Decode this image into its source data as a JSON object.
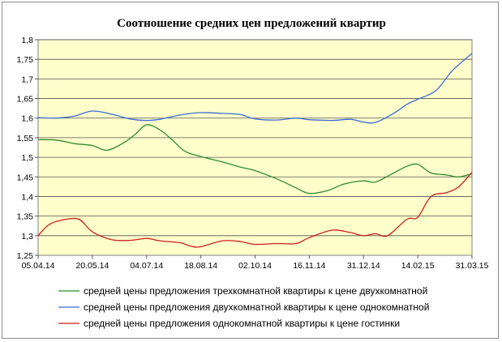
{
  "chart_data": {
    "type": "line",
    "title": "Соотношение средних цен предложений квартир",
    "xlabel": "",
    "ylabel": "",
    "ylim": [
      1.25,
      1.8
    ],
    "yticks": [
      "1,25",
      "1,3",
      "1,35",
      "1,4",
      "1,45",
      "1,5",
      "1,55",
      "1,6",
      "1,65",
      "1,7",
      "1,75",
      "1,8"
    ],
    "x_start": "05.04.14",
    "x_end": "31.03.15",
    "xticks": [
      "05.04.14",
      "20.05.14",
      "04.07.14",
      "18.08.14",
      "02.10.14",
      "16.11.14",
      "31.12.14",
      "14.02.15",
      "31.03.15"
    ],
    "grid": "horizontal",
    "legend_position": "bottom",
    "plot_background": "#ffffcc",
    "series": [
      {
        "name": "средней  цены предложения трехкомнатной квартиры к цене двухкомнатной",
        "color": "#2e8b2e",
        "points": [
          [
            "05.04.14",
            1.545
          ],
          [
            "20.04.14",
            1.544
          ],
          [
            "05.05.14",
            1.535
          ],
          [
            "20.05.14",
            1.53
          ],
          [
            "01.06.14",
            1.518
          ],
          [
            "15.06.14",
            1.537
          ],
          [
            "25.06.14",
            1.56
          ],
          [
            "04.07.14",
            1.583
          ],
          [
            "15.07.14",
            1.57
          ],
          [
            "25.07.14",
            1.545
          ],
          [
            "05.08.14",
            1.515
          ],
          [
            "18.08.14",
            1.502
          ],
          [
            "05.09.14",
            1.488
          ],
          [
            "20.09.14",
            1.475
          ],
          [
            "02.10.14",
            1.466
          ],
          [
            "20.10.14",
            1.445
          ],
          [
            "05.11.14",
            1.422
          ],
          [
            "16.11.14",
            1.408
          ],
          [
            "01.12.14",
            1.415
          ],
          [
            "15.12.14",
            1.432
          ],
          [
            "31.12.14",
            1.44
          ],
          [
            "10.01.15",
            1.437
          ],
          [
            "25.01.15",
            1.46
          ],
          [
            "05.02.15",
            1.477
          ],
          [
            "14.02.15",
            1.482
          ],
          [
            "25.02.15",
            1.46
          ],
          [
            "10.03.15",
            1.455
          ],
          [
            "20.03.15",
            1.45
          ],
          [
            "31.03.15",
            1.458
          ]
        ]
      },
      {
        "name": "средней цены предложения двухкомнатной квартиры к цене однокомнатной",
        "color": "#3a6bd4",
        "points": [
          [
            "05.04.14",
            1.601
          ],
          [
            "20.04.14",
            1.6
          ],
          [
            "05.05.14",
            1.605
          ],
          [
            "20.05.14",
            1.618
          ],
          [
            "05.06.14",
            1.61
          ],
          [
            "20.06.14",
            1.598
          ],
          [
            "04.07.14",
            1.594
          ],
          [
            "15.07.14",
            1.597
          ],
          [
            "01.08.14",
            1.608
          ],
          [
            "18.08.14",
            1.614
          ],
          [
            "05.09.14",
            1.612
          ],
          [
            "20.09.14",
            1.609
          ],
          [
            "02.10.14",
            1.598
          ],
          [
            "20.10.14",
            1.595
          ],
          [
            "05.11.14",
            1.6
          ],
          [
            "16.11.14",
            1.596
          ],
          [
            "05.12.14",
            1.594
          ],
          [
            "20.12.14",
            1.597
          ],
          [
            "31.12.14",
            1.59
          ],
          [
            "10.01.15",
            1.589
          ],
          [
            "25.01.15",
            1.612
          ],
          [
            "05.02.15",
            1.635
          ],
          [
            "14.02.15",
            1.648
          ],
          [
            "01.03.15",
            1.67
          ],
          [
            "15.03.15",
            1.722
          ],
          [
            "31.03.15",
            1.765
          ]
        ]
      },
      {
        "name": "средней цены предложения однокомнатной квартиры к цене гостинки",
        "color": "#cc1f1f",
        "points": [
          [
            "05.04.14",
            1.3
          ],
          [
            "15.04.14",
            1.33
          ],
          [
            "01.05.14",
            1.343
          ],
          [
            "10.05.14",
            1.34
          ],
          [
            "20.05.14",
            1.31
          ],
          [
            "05.06.14",
            1.29
          ],
          [
            "20.06.14",
            1.288
          ],
          [
            "04.07.14",
            1.293
          ],
          [
            "15.07.14",
            1.287
          ],
          [
            "01.08.14",
            1.282
          ],
          [
            "10.08.14",
            1.273
          ],
          [
            "18.08.14",
            1.272
          ],
          [
            "05.09.14",
            1.287
          ],
          [
            "20.09.14",
            1.285
          ],
          [
            "02.10.14",
            1.278
          ],
          [
            "20.10.14",
            1.28
          ],
          [
            "05.11.14",
            1.28
          ],
          [
            "16.11.14",
            1.295
          ],
          [
            "05.12.14",
            1.314
          ],
          [
            "20.12.14",
            1.308
          ],
          [
            "31.12.14",
            1.3
          ],
          [
            "10.01.15",
            1.305
          ],
          [
            "20.01.15",
            1.3
          ],
          [
            "05.02.15",
            1.342
          ],
          [
            "14.02.15",
            1.347
          ],
          [
            "25.02.15",
            1.4
          ],
          [
            "10.03.15",
            1.41
          ],
          [
            "20.03.15",
            1.425
          ],
          [
            "31.03.15",
            1.462
          ]
        ]
      }
    ]
  }
}
